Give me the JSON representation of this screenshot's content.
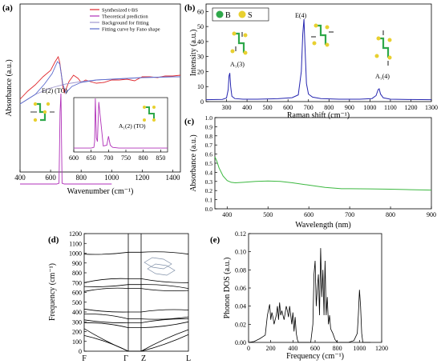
{
  "chart_data": [
    {
      "panel_label": "(a)",
      "type": "line",
      "xlabel": "Wavenumber (cm⁻¹)",
      "ylabel": "Absorbance (a.u.)",
      "xlim": [
        400,
        1450
      ],
      "x_ticks": [
        400,
        600,
        800,
        1000,
        1200,
        1400
      ],
      "legend_position": "top-right",
      "series": [
        {
          "name": "Synthesized t-BS",
          "color": "#e0282e",
          "x": [
            400,
            450,
            500,
            550,
            600,
            630,
            650,
            660,
            670,
            680,
            690,
            700,
            720,
            750,
            780,
            800,
            830,
            860,
            900,
            950,
            1000,
            1050,
            1100,
            1150,
            1200,
            1250,
            1300,
            1350,
            1400,
            1450
          ],
          "y": [
            0.36,
            0.46,
            0.54,
            0.64,
            0.72,
            0.83,
            0.89,
            0.82,
            0.68,
            0.52,
            0.44,
            0.48,
            0.58,
            0.66,
            0.62,
            0.57,
            0.6,
            0.58,
            0.56,
            0.57,
            0.6,
            0.6,
            0.61,
            0.59,
            0.64,
            0.64,
            0.63,
            0.65,
            0.65,
            0.66
          ]
        },
        {
          "name": "Theoretical prediction",
          "color": "#b030b8",
          "x": [
            400,
            640,
            655,
            662,
            668,
            675,
            690,
            720,
            760,
            800,
            850,
            900,
            950,
            1000
          ],
          "y": [
            -0.7,
            -0.7,
            -0.69,
            0.2,
            0.43,
            -0.69,
            -0.7,
            -0.7,
            -0.7,
            -0.7,
            -0.7,
            -0.7,
            -0.7,
            -0.7
          ]
        },
        {
          "name": "Background for fitting",
          "color": "#a098d0",
          "x": [
            400,
            500,
            600,
            700,
            800,
            900,
            1000,
            1100,
            1200,
            1300,
            1400,
            1450
          ],
          "y": [
            0.3,
            0.42,
            0.5,
            0.55,
            0.58,
            0.6,
            0.61,
            0.62,
            0.63,
            0.635,
            0.64,
            0.64
          ]
        },
        {
          "name": "Fitting curve by Fano shape",
          "color": "#5a6acc",
          "x": [
            400,
            500,
            560,
            610,
            645,
            660,
            680,
            700,
            740,
            800,
            900,
            1000,
            1100,
            1200,
            1300,
            1400,
            1450
          ],
          "y": [
            0.3,
            0.42,
            0.55,
            0.68,
            0.83,
            0.8,
            0.55,
            0.44,
            0.52,
            0.57,
            0.6,
            0.61,
            0.62,
            0.63,
            0.635,
            0.64,
            0.64
          ]
        }
      ],
      "annotations": [
        "E(2) (TO)"
      ],
      "inset": {
        "type": "line",
        "xlim": [
          600,
          870
        ],
        "x_ticks": [
          600,
          650,
          700,
          750,
          800,
          850
        ],
        "label": "A₁(2) (TO)",
        "series": [
          {
            "name": "",
            "color": "#b030b8",
            "x": [
              600,
              650,
              658,
              660,
              662,
              665,
              668,
              672,
              685,
              695,
              700,
              705,
              712,
              730,
              760,
              800,
              850,
              870
            ],
            "y": [
              0.02,
              0.02,
              0.04,
              0.2,
              1.4,
              0.3,
              0.2,
              1.3,
              0.08,
              0.1,
              0.35,
              0.1,
              0.04,
              0.02,
              0.02,
              0.02,
              0.02,
              0.02
            ]
          }
        ]
      }
    },
    {
      "panel_label": "(b)",
      "type": "line",
      "xlabel": "Raman shift (cm⁻¹)",
      "ylabel": "Intensity (a.u.)",
      "xlim": [
        200,
        1300
      ],
      "ylim": [
        0,
        65
      ],
      "x_ticks": [
        300,
        400,
        500,
        600,
        700,
        800,
        900,
        1000,
        1100,
        1200,
        1300
      ],
      "y_ticks": [
        0,
        10,
        20,
        30,
        40,
        50,
        60
      ],
      "legend": [
        {
          "label": "B",
          "color": "#2ea84a"
        },
        {
          "label": "S",
          "color": "#e8d030"
        }
      ],
      "series": [
        {
          "name": "",
          "color": "#2626b0",
          "x": [
            200,
            280,
            300,
            308,
            312,
            316,
            320,
            326,
            340,
            380,
            450,
            550,
            620,
            650,
            665,
            672,
            678,
            682,
            690,
            700,
            720,
            760,
            850,
            950,
            1010,
            1030,
            1040,
            1045,
            1052,
            1065,
            1100,
            1200,
            1300
          ],
          "y": [
            1.3,
            1.5,
            2.4,
            8,
            17,
            19,
            10,
            3.5,
            2,
            1.6,
            1.6,
            1.9,
            2.6,
            4.5,
            20,
            45,
            55,
            40,
            12,
            5,
            3,
            2,
            1.6,
            1.6,
            2,
            4,
            8,
            8.5,
            5,
            2.5,
            1.6,
            1.4,
            1.3
          ]
        }
      ],
      "annotations": [
        "A₁(3)",
        "E(4)",
        "A₁(4)"
      ]
    },
    {
      "panel_label": "(c)",
      "type": "line",
      "xlabel": "Wavelength (nm)",
      "ylabel": "Absorbance (a.u.)",
      "xlim": [
        370,
        900
      ],
      "ylim": [
        0.0,
        1.0
      ],
      "x_ticks": [
        400,
        500,
        600,
        700,
        800,
        900
      ],
      "y_ticks": [
        0.0,
        0.1,
        0.2,
        0.3,
        0.4,
        0.5,
        0.6,
        0.7,
        0.8,
        0.9,
        1.0
      ],
      "series": [
        {
          "name": "",
          "color": "#3cb840",
          "x": [
            370,
            375,
            380,
            390,
            400,
            410,
            420,
            440,
            470,
            500,
            530,
            560,
            600,
            640,
            680,
            700,
            750,
            800,
            850,
            900
          ],
          "y": [
            0.57,
            0.52,
            0.45,
            0.36,
            0.31,
            0.29,
            0.285,
            0.29,
            0.3,
            0.305,
            0.3,
            0.285,
            0.26,
            0.235,
            0.22,
            0.22,
            0.218,
            0.215,
            0.21,
            0.205
          ]
        }
      ]
    },
    {
      "panel_label": "(d)",
      "type": "line",
      "ylabel": "Frequency (cm⁻¹)",
      "ylim": [
        0,
        1200
      ],
      "y_ticks": [
        0,
        100,
        200,
        300,
        400,
        500,
        600,
        700,
        800,
        900,
        1000,
        1100,
        1200
      ],
      "x_tick_labels": [
        "F",
        "Γ",
        "Z",
        "L"
      ],
      "series_note": "phonon dispersion branches",
      "series": [
        {
          "name": "",
          "color": "#000000",
          "y_at_points": [
            990,
            1010,
            1010,
            990
          ]
        },
        {
          "name": "",
          "color": "#000000",
          "y_at_points": [
            700,
            740,
            740,
            700
          ]
        },
        {
          "name": "",
          "color": "#000000",
          "y_at_points": [
            660,
            680,
            680,
            640
          ]
        },
        {
          "name": "",
          "color": "#000000",
          "y_at_points": [
            610,
            640,
            640,
            620
          ]
        },
        {
          "name": "",
          "color": "#000000",
          "y_at_points": [
            430,
            400,
            400,
            420
          ]
        },
        {
          "name": "",
          "color": "#000000",
          "y_at_points": [
            380,
            330,
            330,
            350
          ]
        },
        {
          "name": "",
          "color": "#000000",
          "y_at_points": [
            320,
            290,
            290,
            330
          ]
        },
        {
          "name": "",
          "color": "#000000",
          "y_at_points": [
            290,
            240,
            240,
            300
          ]
        },
        {
          "name": "",
          "color": "#000000",
          "y_at_points": [
            230,
            0,
            0,
            220
          ]
        },
        {
          "name": "",
          "color": "#000000",
          "y_at_points": [
            160,
            0,
            0,
            170
          ]
        }
      ]
    },
    {
      "panel_label": "(e)",
      "type": "line",
      "xlabel": "Frequency (cm⁻¹)",
      "ylabel": "Phonon DOS (a.u.)",
      "xlim": [
        0,
        1200
      ],
      "ylim": [
        0,
        0.12
      ],
      "x_ticks": [
        0,
        200,
        400,
        600,
        800,
        1000,
        1200
      ],
      "y_ticks": [
        0.0,
        0.02,
        0.04,
        0.06,
        0.08,
        0.1,
        0.12
      ],
      "series": [
        {
          "name": "",
          "color": "#000000",
          "x": [
            0,
            50,
            100,
            150,
            170,
            190,
            200,
            210,
            220,
            230,
            250,
            260,
            270,
            280,
            290,
            300,
            320,
            340,
            350,
            360,
            370,
            380,
            390,
            400,
            410,
            420,
            430,
            440,
            450,
            500,
            560,
            580,
            590,
            600,
            610,
            620,
            630,
            640,
            650,
            660,
            670,
            680,
            690,
            700,
            710,
            720,
            730,
            740,
            760,
            780,
            800,
            850,
            900,
            950,
            980,
            990,
            1000,
            1010,
            1020,
            1030,
            1050,
            1100
          ],
          "y": [
            0,
            0.001,
            0.004,
            0.008,
            0.03,
            0.042,
            0.025,
            0.033,
            0.028,
            0.02,
            0.03,
            0.04,
            0.025,
            0.044,
            0.03,
            0.035,
            0.025,
            0.04,
            0.035,
            0.028,
            0.04,
            0.03,
            0.02,
            0.033,
            0.012,
            0.028,
            0.01,
            0.003,
            0,
            0,
            0,
            0.02,
            0.075,
            0.09,
            0.04,
            0.06,
            0.075,
            0.03,
            0.104,
            0.05,
            0.08,
            0.03,
            0.09,
            0.03,
            0.05,
            0.02,
            0.03,
            0.015,
            0.01,
            0.003,
            0,
            0,
            0,
            0.002,
            0.01,
            0.03,
            0.058,
            0.04,
            0.01,
            0,
            0,
            0
          ]
        }
      ]
    }
  ]
}
